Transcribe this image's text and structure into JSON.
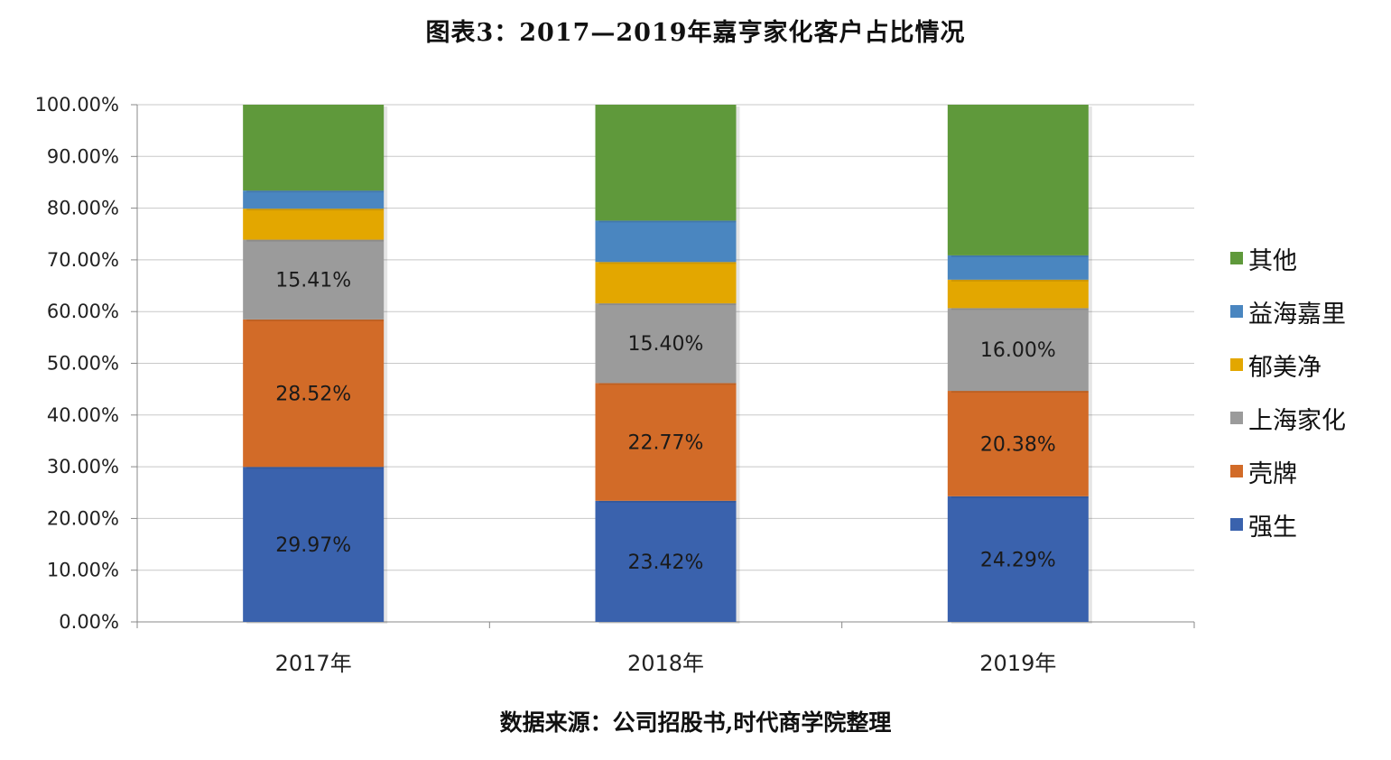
{
  "title": "图表3：2017—2019年嘉亨家化客户占比情况",
  "source": "数据来源：公司招股书,时代商学院整理",
  "chart_data": {
    "type": "bar",
    "stacked": true,
    "categories": [
      "2017年",
      "2018年",
      "2019年"
    ],
    "ylim": [
      0,
      100
    ],
    "yticks": [
      "0.00%",
      "10.00%",
      "20.00%",
      "30.00%",
      "40.00%",
      "50.00%",
      "60.00%",
      "70.00%",
      "80.00%",
      "90.00%",
      "100.00%"
    ],
    "grid": true,
    "legend_position": "right",
    "series": [
      {
        "name": "强生",
        "color": "#3a62ad",
        "values": [
          29.97,
          23.42,
          24.29
        ],
        "labels": [
          "29.97%",
          "23.42%",
          "24.29%"
        ]
      },
      {
        "name": "壳牌",
        "color": "#d26b28",
        "values": [
          28.52,
          22.77,
          20.38
        ],
        "labels": [
          "28.52%",
          "22.77%",
          "20.38%"
        ]
      },
      {
        "name": "上海家化",
        "color": "#9b9b9b",
        "values": [
          15.41,
          15.4,
          16.0
        ],
        "labels": [
          "15.41%",
          "15.40%",
          "16.00%"
        ]
      },
      {
        "name": "郁美净",
        "color": "#e3a700",
        "values": [
          6.0,
          8.0,
          5.5
        ],
        "labels": [
          "",
          "",
          ""
        ]
      },
      {
        "name": "益海嘉里",
        "color": "#4a86c0",
        "values": [
          3.5,
          8.0,
          4.7
        ],
        "labels": [
          "",
          "",
          ""
        ]
      },
      {
        "name": "其他",
        "color": "#5f993b",
        "values": [
          16.6,
          22.41,
          29.13
        ],
        "labels": [
          "",
          "",
          ""
        ]
      }
    ]
  }
}
